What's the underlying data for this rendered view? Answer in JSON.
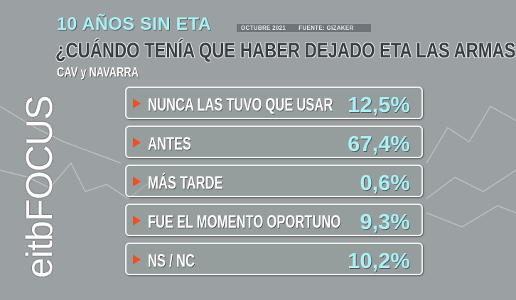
{
  "header": {
    "kicker": "10 AÑOS SIN ETA",
    "date": "OCTUBRE 2021",
    "source": "FUENTE: GIZAKER",
    "title": "¿CUÁNDO TENÍA QUE HABER DEJADO ETA LAS ARMAS?",
    "subtitle": "CAV y NAVARRA"
  },
  "logo": "eitbFOCUS",
  "colors": {
    "background": "#9ba1a2",
    "accent": "#a8f0f5",
    "marker": "#f04e23"
  },
  "chart_data": {
    "type": "table",
    "title": "¿CUÁNDO TENÍA QUE HABER DEJADO ETA LAS ARMAS?",
    "categories": [
      "NUNCA LAS TUVO QUE USAR",
      "ANTES",
      "MÁS TARDE",
      "FUE EL MOMENTO OPORTUNO",
      "NS / NC"
    ],
    "values": [
      12.5,
      67.4,
      0.6,
      9.3,
      10.2
    ],
    "labels": [
      "12,5%",
      "67,4%",
      "0,6%",
      "9,3%",
      "10,2%"
    ]
  }
}
